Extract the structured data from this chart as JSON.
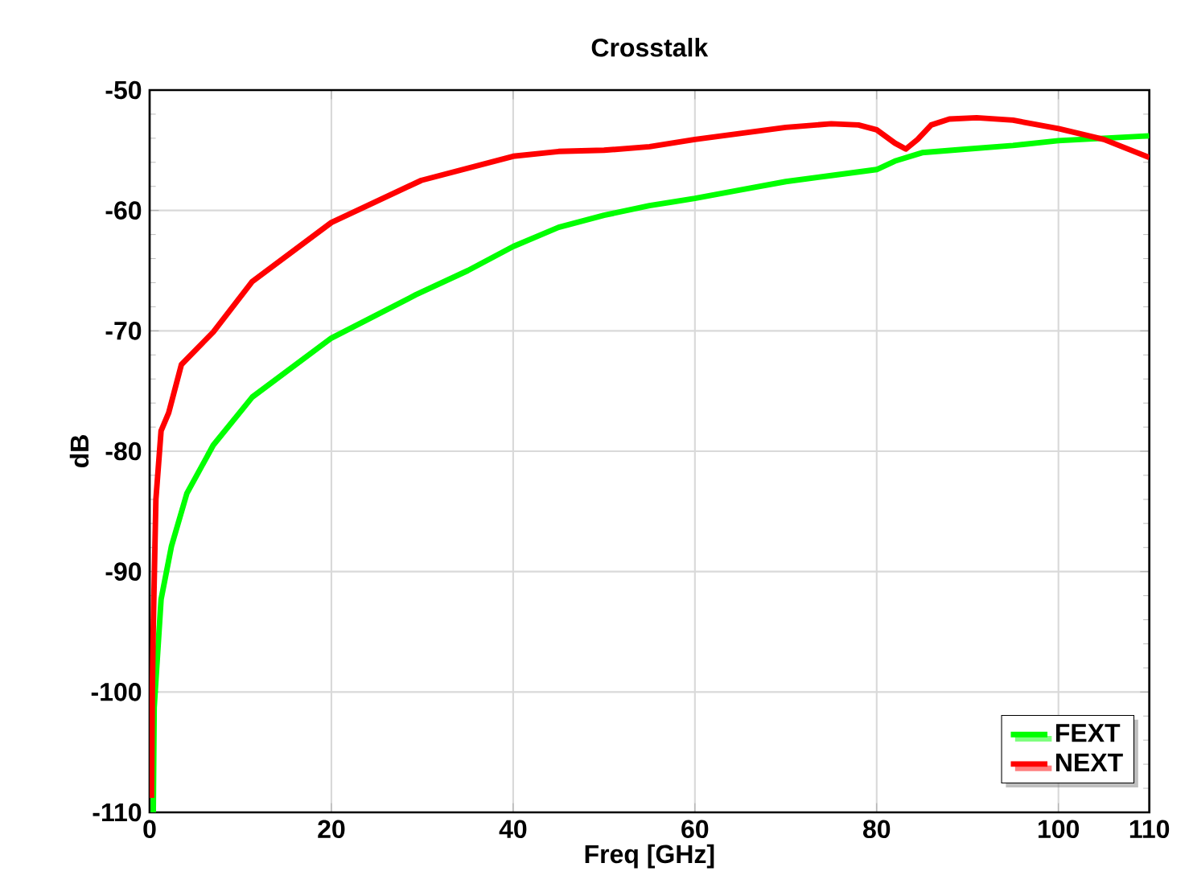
{
  "chart_data": {
    "type": "line",
    "title": "Crosstalk",
    "xlabel": "Freq [GHz]",
    "ylabel": "dB",
    "xlim": [
      0,
      110
    ],
    "ylim": [
      -110,
      -50
    ],
    "xticks": [
      0,
      20,
      40,
      60,
      80,
      100,
      110
    ],
    "yticks": [
      -110,
      -100,
      -90,
      -80,
      -70,
      -60,
      -50
    ],
    "grid": true,
    "legend": "bottom right",
    "marker": "none",
    "line_style": "solid",
    "series": [
      {
        "name": "FEXT",
        "color": "#00ff00",
        "x": [
          0.4,
          0.5,
          1.26,
          2.4,
          4.1,
          7.0,
          11.3,
          20,
          29.3,
          35,
          40,
          45,
          50,
          55,
          60,
          65,
          70,
          75,
          80,
          82,
          85,
          90,
          95,
          100,
          105,
          110
        ],
        "values": [
          -110,
          -101.3,
          -92.3,
          -87.9,
          -83.5,
          -79.5,
          -75.5,
          -70.6,
          -67.0,
          -65.0,
          -63.0,
          -61.4,
          -60.4,
          -59.6,
          -59.0,
          -58.3,
          -57.6,
          -57.1,
          -56.6,
          -55.9,
          -55.2,
          -54.9,
          -54.6,
          -54.2,
          -54.0,
          -53.8
        ]
      },
      {
        "name": "NEXT",
        "color": "#ff0000",
        "x": [
          0.2,
          0.3,
          0.4,
          0.69,
          1.26,
          2.1,
          3.5,
          7.0,
          11.3,
          20,
          29.9,
          40,
          45,
          50,
          55,
          60,
          65,
          70,
          75,
          78,
          80,
          82,
          83.2,
          84.5,
          86,
          88,
          91,
          95,
          100,
          105,
          110
        ],
        "values": [
          -108.8,
          -100,
          -94.6,
          -84,
          -78.3,
          -76.8,
          -72.8,
          -70.1,
          -65.9,
          -61.0,
          -57.5,
          -55.5,
          -55.1,
          -55.0,
          -54.7,
          -54.1,
          -53.6,
          -53.1,
          -52.8,
          -52.9,
          -53.3,
          -54.4,
          -54.9,
          -54.1,
          -52.9,
          -52.4,
          -52.3,
          -52.5,
          -53.2,
          -54.1,
          -55.6
        ]
      }
    ]
  }
}
